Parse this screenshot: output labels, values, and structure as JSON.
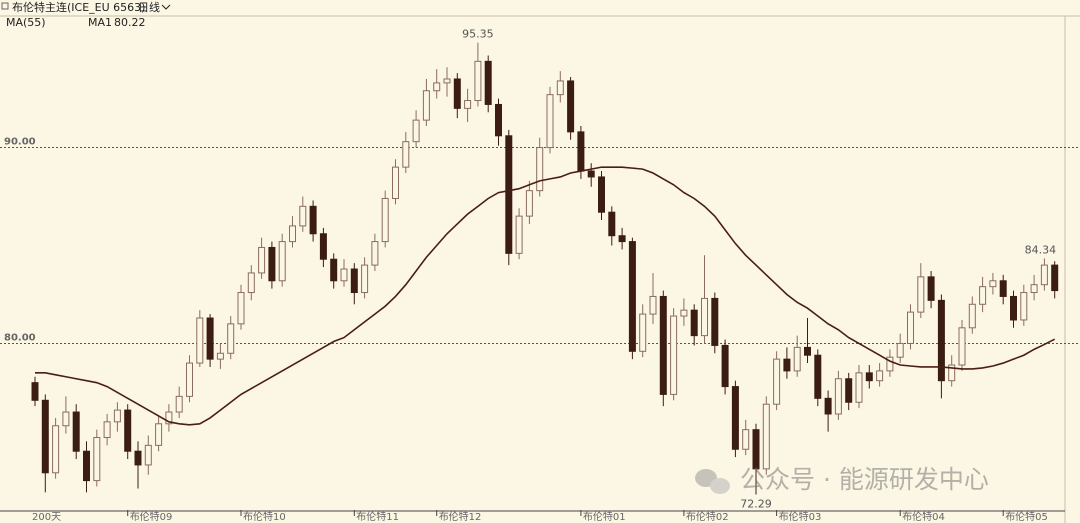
{
  "chart_data": {
    "type": "candlestick",
    "title": "布伦特主连(ICE_EU 6563)",
    "period": "日线",
    "indicator": "MA(55)",
    "range_label": "200天",
    "watermark": "公众号 · 能源研发中心",
    "up_color": "#8a6d5e",
    "down_color": "#3b1d14",
    "ylim": [
      71.5,
      96.0
    ],
    "yticks": [
      {
        "value": 80,
        "label": "80.00"
      },
      {
        "value": 90,
        "label": "90.00"
      }
    ],
    "grid": true,
    "xticks": [
      {
        "value": 9,
        "label": "布伦特09"
      },
      {
        "value": 20,
        "label": "布伦特10"
      },
      {
        "value": 31,
        "label": "布伦特11"
      },
      {
        "value": 39,
        "label": "布伦特12"
      },
      {
        "value": 53,
        "label": "布伦特01"
      },
      {
        "value": 63,
        "label": "布伦特02"
      },
      {
        "value": 72,
        "label": "布伦特03"
      },
      {
        "value": 84,
        "label": "布伦特04"
      },
      {
        "value": 94,
        "label": "布伦特05"
      }
    ],
    "open": [
      78.0,
      77.1,
      73.4,
      75.8,
      76.5,
      74.5,
      73.0,
      75.2,
      76.0,
      76.6,
      74.5,
      73.8,
      74.8,
      75.9,
      76.5,
      77.3,
      79.0,
      81.3,
      79.2,
      79.5,
      81.0,
      82.6,
      83.6,
      84.9,
      83.2,
      85.2,
      86.0,
      87.0,
      85.6,
      84.3,
      83.2,
      83.8,
      82.6,
      84.0,
      85.2,
      87.4,
      89.0,
      90.3,
      91.4,
      92.9,
      93.3,
      93.5,
      92.0,
      92.4,
      94.4,
      92.2,
      90.6,
      84.6,
      86.5,
      87.8,
      90.0,
      92.7,
      93.4,
      90.8,
      88.8,
      88.5,
      86.7,
      85.5,
      85.2,
      79.6,
      81.5,
      82.4,
      77.4,
      81.4,
      81.7,
      80.4,
      82.3,
      79.9,
      77.8,
      74.6,
      75.6,
      73.6,
      76.9,
      79.2,
      78.6,
      79.8,
      79.4,
      77.2,
      76.4,
      78.2,
      77.0,
      78.5,
      78.1,
      78.6,
      79.3,
      80.0,
      81.6,
      83.4,
      82.2,
      78.1,
      78.9,
      80.8,
      82.0,
      82.9,
      83.2,
      82.4,
      81.2,
      82.6,
      83.0,
      84.0
    ],
    "high": [
      78.3,
      77.4,
      76.2,
      77.3,
      76.9,
      75.0,
      75.6,
      76.4,
      77.0,
      76.9,
      75.0,
      75.3,
      76.3,
      76.9,
      77.8,
      79.4,
      81.7,
      81.5,
      80.0,
      81.4,
      83.0,
      84.0,
      85.4,
      85.2,
      85.6,
      86.5,
      87.5,
      87.3,
      85.9,
      84.6,
      84.3,
      84.1,
      84.4,
      85.6,
      87.8,
      89.4,
      90.8,
      91.9,
      93.5,
      94.0,
      94.1,
      93.8,
      93.0,
      95.35,
      94.7,
      92.5,
      90.9,
      86.9,
      88.3,
      90.5,
      93.1,
      93.9,
      93.6,
      91.1,
      89.2,
      88.8,
      87.0,
      85.9,
      85.4,
      82.0,
      83.6,
      82.7,
      81.8,
      82.3,
      82.0,
      84.5,
      82.6,
      80.2,
      78.1,
      76.1,
      75.9,
      77.3,
      79.6,
      79.8,
      80.4,
      81.3,
      79.7,
      77.6,
      78.6,
      78.5,
      78.9,
      78.9,
      79.0,
      79.7,
      80.5,
      82.0,
      84.1,
      83.7,
      82.5,
      79.4,
      81.2,
      82.4,
      83.4,
      83.6,
      83.5,
      82.7,
      83.0,
      83.5,
      84.34,
      84.2
    ],
    "low": [
      76.8,
      72.4,
      73.1,
      75.4,
      74.1,
      72.4,
      72.7,
      74.8,
      75.5,
      74.1,
      72.6,
      73.3,
      74.5,
      75.5,
      76.2,
      77.0,
      78.8,
      78.8,
      78.7,
      79.2,
      80.7,
      82.2,
      83.3,
      82.8,
      82.9,
      84.9,
      85.7,
      85.2,
      83.9,
      82.8,
      82.9,
      82.0,
      82.3,
      83.7,
      84.9,
      87.1,
      88.7,
      90.0,
      91.1,
      92.5,
      92.6,
      91.5,
      91.3,
      92.1,
      91.8,
      90.1,
      84.0,
      84.3,
      86.1,
      87.5,
      89.7,
      92.3,
      90.4,
      88.4,
      88.0,
      86.3,
      85.0,
      84.8,
      79.2,
      79.3,
      81.0,
      76.8,
      77.1,
      80.9,
      79.9,
      80.0,
      79.5,
      77.4,
      74.2,
      74.3,
      72.29,
      73.3,
      76.6,
      78.2,
      78.3,
      79.0,
      76.8,
      75.5,
      76.1,
      76.6,
      76.7,
      77.7,
      77.8,
      78.3,
      79.0,
      79.7,
      81.3,
      81.8,
      77.2,
      77.8,
      78.6,
      80.5,
      81.6,
      82.5,
      82.0,
      80.8,
      80.9,
      82.2,
      82.7,
      82.3
    ],
    "close": [
      77.1,
      73.4,
      75.8,
      76.5,
      74.5,
      73.0,
      75.2,
      76.0,
      76.6,
      74.5,
      73.8,
      74.8,
      75.9,
      76.5,
      77.3,
      79.0,
      81.3,
      79.2,
      79.5,
      81.0,
      82.6,
      83.6,
      84.9,
      83.2,
      85.2,
      86.0,
      87.0,
      85.6,
      84.3,
      83.2,
      83.8,
      82.6,
      84.0,
      85.2,
      87.4,
      89.0,
      90.3,
      91.4,
      92.9,
      93.3,
      93.5,
      92.0,
      92.4,
      94.4,
      92.2,
      90.6,
      84.6,
      86.5,
      87.8,
      90.0,
      92.7,
      93.4,
      90.8,
      88.8,
      88.5,
      86.7,
      85.5,
      85.2,
      79.6,
      81.5,
      82.4,
      77.4,
      81.4,
      81.7,
      80.4,
      82.3,
      79.9,
      77.8,
      74.6,
      75.6,
      73.6,
      76.9,
      79.2,
      78.6,
      79.8,
      79.4,
      77.2,
      76.4,
      78.2,
      77.0,
      78.5,
      78.1,
      78.6,
      79.3,
      80.0,
      81.6,
      83.4,
      82.2,
      78.1,
      78.9,
      80.8,
      82.0,
      82.9,
      83.2,
      82.4,
      81.2,
      82.6,
      83.0,
      84.0,
      82.7
    ],
    "series": [
      {
        "name": "MA1",
        "color": "#4a1e12",
        "values": [
          78.5,
          78.5,
          78.4,
          78.3,
          78.2,
          78.1,
          78.0,
          77.8,
          77.5,
          77.2,
          76.9,
          76.6,
          76.3,
          76.0,
          75.9,
          75.85,
          75.9,
          76.2,
          76.6,
          77.0,
          77.4,
          77.7,
          78.0,
          78.3,
          78.6,
          78.9,
          79.2,
          79.5,
          79.8,
          80.1,
          80.3,
          80.7,
          81.1,
          81.5,
          81.9,
          82.4,
          83.0,
          83.7,
          84.4,
          85.0,
          85.6,
          86.1,
          86.6,
          87.0,
          87.4,
          87.7,
          87.8,
          87.9,
          88.1,
          88.3,
          88.4,
          88.5,
          88.7,
          88.8,
          88.9,
          89.0,
          89.0,
          89.0,
          88.95,
          88.9,
          88.7,
          88.4,
          88.1,
          87.7,
          87.4,
          87.0,
          86.5,
          85.8,
          85.1,
          84.5,
          84.0,
          83.5,
          83.0,
          82.5,
          82.1,
          81.8,
          81.4,
          81.0,
          80.7,
          80.3,
          80.0,
          79.7,
          79.4,
          79.1,
          78.9,
          78.85,
          78.8,
          78.8,
          78.8,
          78.75,
          78.7,
          78.7,
          78.75,
          78.85,
          79.0,
          79.2,
          79.4,
          79.7,
          79.95,
          80.22
        ]
      }
    ]
  }
}
